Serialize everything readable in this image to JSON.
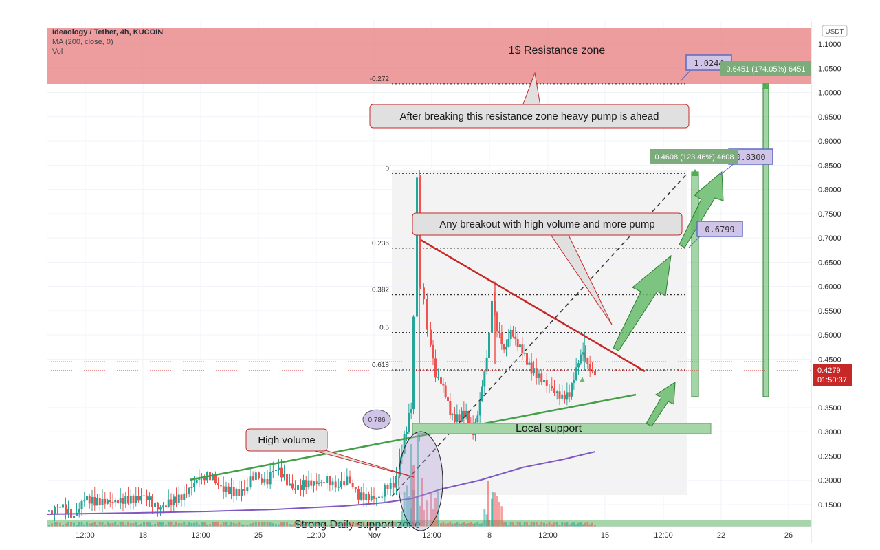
{
  "header": {
    "symbol": "Ideaology / Tether, 4h, KUCOIN",
    "ma_label": "MA (200, close, 0)",
    "vol_label": "Vol"
  },
  "price_axis": {
    "unit": "USDT",
    "ticks": [
      "1.1000",
      "1.0500",
      "1.0000",
      "0.9500",
      "0.9000",
      "0.8500",
      "0.8000",
      "0.7500",
      "0.7000",
      "0.6500",
      "0.6000",
      "0.5500",
      "0.5000",
      "0.4500",
      "0.3500",
      "0.3000",
      "0.2500",
      "0.2000",
      "0.1500"
    ],
    "last_price": "0.4279",
    "countdown": "01:50:37"
  },
  "time_axis": {
    "ticks": [
      "12:00",
      "18",
      "12:00",
      "25",
      "12:00",
      "Nov",
      "12:00",
      "8",
      "12:00",
      "15",
      "12:00",
      "22",
      "26"
    ]
  },
  "fib_levels": [
    {
      "label": "-0.272",
      "price": 1.018
    },
    {
      "label": "0",
      "price": 0.833
    },
    {
      "label": "0.236",
      "price": 0.679
    },
    {
      "label": "0.382",
      "price": 0.583
    },
    {
      "label": "0.5",
      "price": 0.505
    },
    {
      "label": "0.618",
      "price": 0.428
    },
    {
      "label": "0.786",
      "price": 0.317
    }
  ],
  "annotations": {
    "resistance_zone": "1$ Resistance zone",
    "breaking_note": "After breaking this resistance zone heavy pump is ahead",
    "breakout_note": "Any breakout with high volume and more pump",
    "high_volume": "High volume",
    "local_support": "Local support",
    "strong_support": "Strong Daily support zone",
    "target_1": "1.0244",
    "target_2": "0.8300",
    "target_3": "0.6799",
    "measure_1": "0.6451 (174.05%) 6451",
    "measure_2": "0.4608 (123.46%) 4608"
  },
  "colors": {
    "resistance_zone": "#e57373",
    "support_zone": "#a5d6a7",
    "up_candle": "#26a69a",
    "down_candle": "#ef5350",
    "ma_line": "#7e57c2",
    "trend_down": "#c62828",
    "trend_up": "#43a047",
    "arrow": "#4caf50"
  },
  "chart_data": {
    "type": "candlestick",
    "title": "Ideaology / Tether, 4h, KUCOIN",
    "ylabel": "USDT",
    "ylim": [
      0.12,
      1.13
    ],
    "x_ticks": [
      "12:00",
      "18",
      "12:00",
      "25",
      "12:00",
      "Nov",
      "12:00",
      "8",
      "12:00",
      "15",
      "12:00",
      "22",
      "26"
    ],
    "approx_price_path": [
      {
        "t": "Oct 14",
        "close": 0.135
      },
      {
        "t": "Oct 15",
        "close": 0.175
      },
      {
        "t": "Oct 18",
        "close": 0.165
      },
      {
        "t": "Oct 21",
        "close": 0.19
      },
      {
        "t": "Oct 24",
        "close": 0.215
      },
      {
        "t": "Oct 27",
        "close": 0.195
      },
      {
        "t": "Oct 30",
        "close": 0.19
      },
      {
        "t": "Nov 2",
        "close": 0.18
      },
      {
        "t": "Nov 4",
        "close": 0.23
      },
      {
        "t": "Nov 5",
        "close": 0.52
      },
      {
        "t": "Nov 5",
        "high": 0.84
      },
      {
        "t": "Nov 6",
        "close": 0.45
      },
      {
        "t": "Nov 7",
        "close": 0.32
      },
      {
        "t": "Nov 8",
        "close": 0.53
      },
      {
        "t": "Nov 10",
        "close": 0.45
      },
      {
        "t": "Nov 12",
        "close": 0.39
      },
      {
        "t": "Nov 13",
        "close": 0.43
      },
      {
        "t": "Nov 14",
        "close": 0.4279
      }
    ],
    "moving_average": {
      "name": "MA (200, close, 0)",
      "from": 0.145,
      "to": 0.26
    },
    "last_price": 0.4279
  }
}
